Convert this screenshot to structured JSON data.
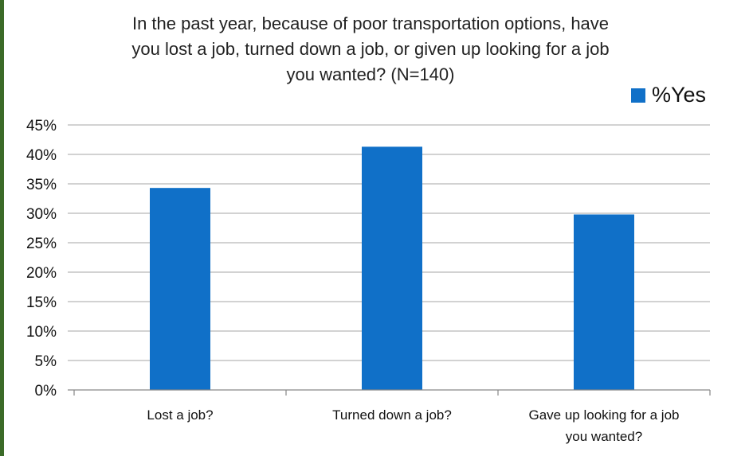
{
  "chart_data": {
    "type": "bar",
    "title": "In the past year, because of poor transportation options, have\nyou lost a job, turned down a job, or given up looking for a job\nyou wanted? (N=140)",
    "categories": [
      "Lost a job?",
      "Turned down a job?",
      "Gave up looking for a job\nyou wanted?"
    ],
    "series": [
      {
        "name": "%Yes",
        "values": [
          34.3,
          41.3,
          29.8
        ],
        "color": "#1070c8"
      }
    ],
    "ylim": [
      0,
      45
    ],
    "yticks": [
      "0%",
      "5%",
      "10%",
      "15%",
      "20%",
      "25%",
      "30%",
      "35%",
      "40%",
      "45%"
    ],
    "ytick_values": [
      0,
      5,
      10,
      15,
      20,
      25,
      30,
      35,
      40,
      45
    ],
    "grid": true,
    "legend_position": "top-right",
    "gridline_color": "#a6a6a6",
    "axis_color": "#868686"
  }
}
